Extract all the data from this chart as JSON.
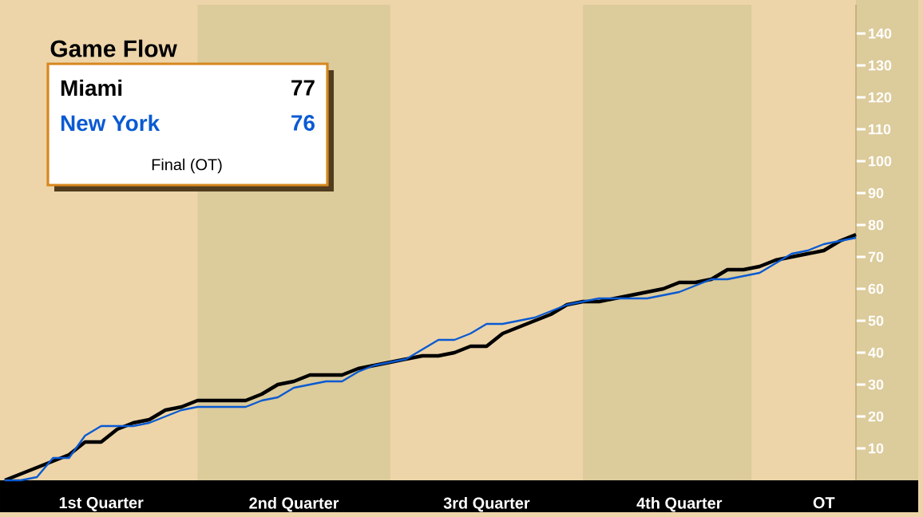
{
  "chart_data": {
    "type": "line",
    "title": "Game Flow",
    "categories": [
      null,
      null,
      null,
      null,
      null,
      null,
      "1st Quarter",
      null,
      null,
      null,
      null,
      null,
      null,
      null,
      null,
      null,
      null,
      null,
      "2nd Quarter",
      null,
      null,
      null,
      null,
      null,
      null,
      null,
      null,
      null,
      null,
      null,
      "3rd Quarter",
      null,
      null,
      null,
      null,
      null,
      null,
      null,
      null,
      null,
      null,
      null,
      "4th Quarter",
      null,
      null,
      null,
      null,
      null,
      null,
      null,
      null,
      "OT",
      null,
      null
    ],
    "ylim": [
      0,
      149
    ],
    "yticks": [
      10,
      20,
      30,
      40,
      50,
      60,
      70,
      80,
      90,
      100,
      110,
      120,
      130,
      140
    ],
    "legend": "top left",
    "grid": false,
    "marker": "none",
    "line_style": "solid",
    "annotations": [
      "77",
      "76",
      "Final (OT)"
    ],
    "series": [
      {
        "name": "Miami",
        "color": "#000000",
        "values": [
          0,
          2,
          4,
          6,
          8,
          12,
          12,
          16,
          18,
          19,
          22,
          23,
          25,
          25,
          25,
          25,
          27,
          30,
          31,
          33,
          33,
          33,
          35,
          36,
          37,
          38,
          39,
          39,
          40,
          42,
          42,
          46,
          48,
          50,
          52,
          55,
          56,
          56,
          57,
          58,
          59,
          60,
          62,
          62,
          63,
          66,
          66,
          67,
          69,
          70,
          71,
          72,
          75,
          77
        ]
      },
      {
        "name": "New York",
        "color": "#0a5ad2",
        "values": [
          0,
          0,
          1,
          7,
          7,
          14,
          17,
          17,
          17,
          18,
          20,
          22,
          23,
          23,
          23,
          23,
          25,
          26,
          29,
          30,
          31,
          31,
          34,
          36,
          37,
          38,
          41,
          44,
          44,
          46,
          49,
          49,
          50,
          51,
          53,
          55,
          56,
          57,
          57,
          57,
          57,
          58,
          59,
          61,
          63,
          63,
          64,
          65,
          68,
          71,
          72,
          74,
          75,
          76
        ]
      }
    ]
  }
}
